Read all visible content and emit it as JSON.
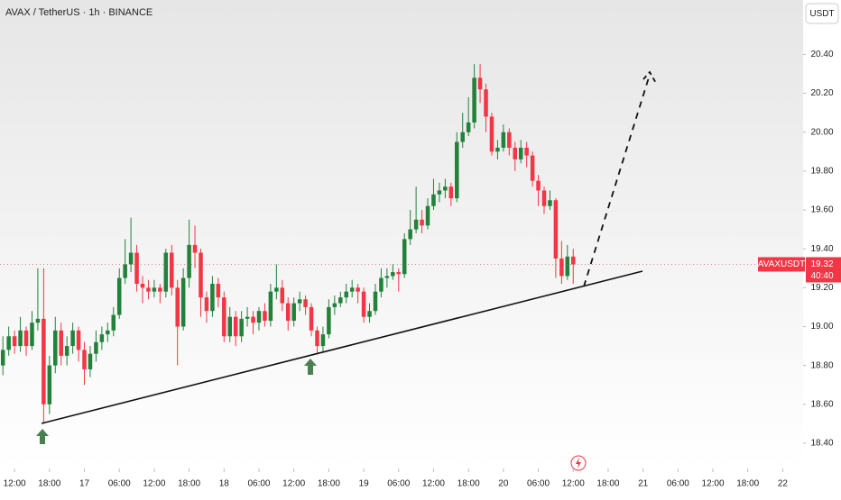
{
  "chart_data": {
    "type": "candlestick",
    "title": "AVAX / TetherUS · 1h · BINANCE",
    "currency": "USDT",
    "symbol_label": "AVAXUSDT",
    "last_price": 19.32,
    "countdown": "40:40",
    "up_color": "#22813a",
    "down_color": "#f23645",
    "grid": false,
    "open": [
      18.8,
      18.88,
      18.95,
      18.9,
      18.98,
      18.9,
      19.02,
      19.04,
      18.6,
      18.8,
      18.98,
      18.85,
      18.9,
      18.98,
      18.88,
      18.78,
      18.86,
      18.92,
      18.96,
      18.98,
      19.06,
      19.25,
      19.32,
      19.38,
      19.22,
      19.2,
      19.18,
      19.2,
      19.18,
      19.38,
      19.2,
      19.0,
      19.25,
      19.42,
      19.38,
      19.15,
      19.08,
      19.22,
      19.15,
      18.95,
      19.05,
      18.95,
      19.04,
      19.05,
      19.02,
      19.08,
      19.03,
      19.18,
      19.2,
      19.12,
      19.03,
      19.12,
      19.14,
      19.1,
      18.98,
      18.9,
      18.96,
      19.1,
      19.12,
      19.15,
      19.18,
      19.2,
      19.18,
      19.05,
      19.08,
      19.18,
      19.25,
      19.26,
      19.28,
      19.27,
      19.45,
      19.5,
      19.55,
      19.52,
      19.62,
      19.68,
      19.7,
      19.72,
      19.66,
      19.95,
      20.0,
      20.05,
      20.28,
      20.22,
      20.08,
      19.9,
      19.92,
      20.0,
      19.92,
      19.86,
      19.92,
      19.88,
      19.75,
      19.7,
      19.62,
      19.65,
      19.35,
      19.26,
      19.36
    ],
    "high": [
      18.95,
      19.0,
      18.98,
      19.05,
      19.0,
      19.08,
      19.3,
      19.3,
      18.85,
      19.05,
      19.02,
      18.95,
      19.02,
      19.0,
      18.92,
      18.9,
      18.98,
      19.0,
      19.02,
      19.1,
      19.3,
      19.45,
      19.56,
      19.42,
      19.26,
      19.24,
      19.24,
      19.22,
      19.4,
      19.42,
      19.24,
      19.3,
      19.55,
      19.52,
      19.4,
      19.18,
      19.26,
      19.25,
      19.18,
      19.1,
      19.08,
      19.08,
      19.1,
      19.08,
      19.1,
      19.12,
      19.22,
      19.32,
      19.24,
      19.15,
      19.15,
      19.18,
      19.16,
      19.12,
      19.0,
      19.0,
      19.14,
      19.16,
      19.18,
      19.22,
      19.24,
      19.22,
      19.2,
      19.12,
      19.22,
      19.3,
      19.3,
      19.32,
      19.3,
      19.48,
      19.6,
      19.72,
      19.6,
      19.66,
      19.76,
      19.74,
      19.76,
      19.74,
      20.0,
      20.1,
      20.18,
      20.35,
      20.35,
      20.25,
      20.1,
      19.96,
      20.04,
      20.02,
      19.95,
      19.96,
      19.95,
      19.9,
      19.78,
      19.72,
      19.7,
      19.66,
      19.44,
      19.42,
      19.4
    ],
    "low": [
      18.75,
      18.85,
      18.86,
      18.87,
      18.85,
      18.88,
      18.98,
      18.5,
      18.55,
      18.76,
      18.8,
      18.8,
      18.86,
      18.82,
      18.7,
      18.74,
      18.82,
      18.88,
      18.92,
      18.95,
      19.04,
      19.22,
      19.28,
      19.18,
      19.12,
      19.14,
      19.15,
      19.12,
      19.15,
      19.16,
      18.8,
      18.98,
      19.2,
      19.3,
      19.05,
      19.02,
      19.05,
      19.1,
      18.92,
      18.92,
      18.9,
      18.92,
      19.0,
      18.96,
      18.98,
      19.0,
      19.0,
      19.14,
      19.08,
      18.98,
      19.0,
      19.08,
      19.06,
      18.95,
      18.86,
      18.87,
      18.94,
      19.06,
      19.1,
      19.12,
      19.15,
      19.12,
      19.02,
      19.02,
      19.06,
      19.15,
      19.2,
      19.24,
      19.18,
      19.25,
      19.42,
      19.48,
      19.48,
      19.5,
      19.6,
      19.64,
      19.66,
      19.62,
      19.64,
      19.92,
      19.98,
      20.02,
      20.15,
      20.0,
      19.88,
      19.86,
      19.9,
      19.88,
      19.8,
      19.84,
      19.82,
      19.72,
      19.62,
      19.58,
      19.6,
      19.25,
      19.22,
      19.24,
      19.22
    ],
    "close": [
      18.88,
      18.95,
      18.9,
      18.98,
      18.9,
      19.02,
      19.04,
      18.6,
      18.8,
      18.98,
      18.85,
      18.9,
      18.98,
      18.88,
      18.78,
      18.86,
      18.92,
      18.96,
      18.98,
      19.06,
      19.25,
      19.32,
      19.38,
      19.22,
      19.2,
      19.18,
      19.2,
      19.18,
      19.38,
      19.2,
      19.0,
      19.25,
      19.42,
      19.38,
      19.15,
      19.08,
      19.22,
      19.15,
      18.95,
      19.05,
      18.95,
      19.04,
      19.05,
      19.02,
      19.08,
      19.03,
      19.18,
      19.2,
      19.12,
      19.03,
      19.12,
      19.14,
      19.1,
      18.98,
      18.9,
      18.96,
      19.1,
      19.12,
      19.15,
      19.18,
      19.2,
      19.18,
      19.05,
      19.08,
      19.18,
      19.25,
      19.26,
      19.28,
      19.27,
      19.45,
      19.5,
      19.55,
      19.52,
      19.62,
      19.68,
      19.7,
      19.72,
      19.66,
      19.95,
      20.0,
      20.05,
      20.28,
      20.22,
      20.08,
      19.9,
      19.92,
      20.0,
      19.92,
      19.86,
      19.92,
      19.88,
      19.75,
      19.7,
      19.62,
      19.65,
      19.35,
      19.26,
      19.36,
      19.32
    ],
    "xlim": [
      -0.5,
      137.5
    ],
    "xticks": [
      {
        "value": 2,
        "label": "12:00"
      },
      {
        "value": 8,
        "label": "18:00"
      },
      {
        "value": 14,
        "label": "17"
      },
      {
        "value": 20,
        "label": "06:00"
      },
      {
        "value": 26,
        "label": "12:00"
      },
      {
        "value": 32,
        "label": "18:00"
      },
      {
        "value": 38,
        "label": "18"
      },
      {
        "value": 44,
        "label": "06:00"
      },
      {
        "value": 50,
        "label": "12:00"
      },
      {
        "value": 56,
        "label": "18:00"
      },
      {
        "value": 62,
        "label": "19"
      },
      {
        "value": 68,
        "label": "06:00"
      },
      {
        "value": 74,
        "label": "12:00"
      },
      {
        "value": 80,
        "label": "18:00"
      },
      {
        "value": 86,
        "label": "20"
      },
      {
        "value": 92,
        "label": "06:00"
      },
      {
        "value": 98,
        "label": "12:00"
      },
      {
        "value": 104,
        "label": "18:00"
      },
      {
        "value": 110,
        "label": "21"
      },
      {
        "value": 116,
        "label": "06:00"
      },
      {
        "value": 122,
        "label": "12:00"
      },
      {
        "value": 128,
        "label": "18:00"
      },
      {
        "value": 134,
        "label": "22"
      }
    ],
    "ylim": [
      18.27,
      20.68
    ],
    "yticks": [
      {
        "value": 20.4,
        "label": "20.40"
      },
      {
        "value": 20.2,
        "label": "20.20"
      },
      {
        "value": 20.0,
        "label": "20.00"
      },
      {
        "value": 19.8,
        "label": "19.80"
      },
      {
        "value": 19.6,
        "label": "19.60"
      },
      {
        "value": 19.4,
        "label": "19.40"
      },
      {
        "value": 19.2,
        "label": "19.20"
      },
      {
        "value": 19.0,
        "label": "19.00"
      },
      {
        "value": 18.8,
        "label": "18.80"
      },
      {
        "value": 18.6,
        "label": "18.60"
      },
      {
        "value": 18.4,
        "label": "18.40"
      }
    ]
  }
}
